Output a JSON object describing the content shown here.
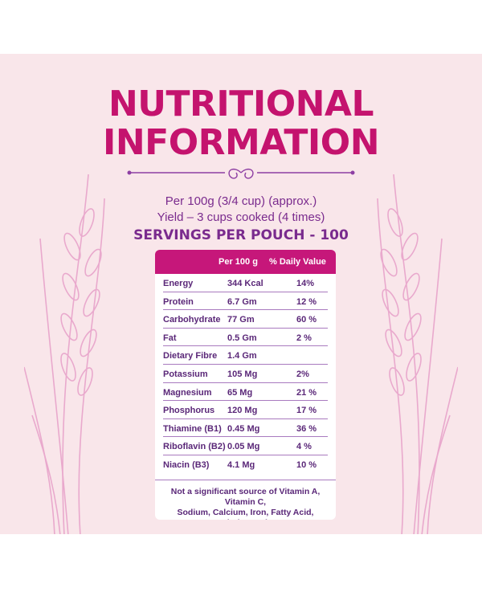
{
  "title": {
    "line1": "NUTRITIONAL",
    "line2": "INFORMATION"
  },
  "subtitle": {
    "per": "Per 100g (3/4 cup) (approx.)",
    "yield": "Yield – 3 cups cooked (4 times)",
    "servings": "SERVINGS PER POUCH - 100"
  },
  "table": {
    "headers": {
      "per100": "Per 100 g",
      "dv": "% Daily Value"
    },
    "rows": [
      {
        "nutrient": "Energy",
        "amount": "344 Kcal",
        "dv": "14%"
      },
      {
        "nutrient": "Protein",
        "amount": "6.7 Gm",
        "dv": "12 %"
      },
      {
        "nutrient": "Carbohydrate",
        "amount": "77 Gm",
        "dv": "60 %"
      },
      {
        "nutrient": "Fat",
        "amount": "0.5 Gm",
        "dv": "2 %"
      },
      {
        "nutrient": "Dietary Fibre",
        "amount": "1.4 Gm",
        "dv": ""
      },
      {
        "nutrient": "Potassium",
        "amount": "105 Mg",
        "dv": "2%"
      },
      {
        "nutrient": "Magnesium",
        "amount": "65 Mg",
        "dv": "21 %"
      },
      {
        "nutrient": "Phosphorus",
        "amount": "120 Mg",
        "dv": "17 %"
      },
      {
        "nutrient": "Thiamine (B1)",
        "amount": "0.45 Mg",
        "dv": "36 %"
      },
      {
        "nutrient": "Riboflavin (B2)",
        "amount": "0.05 Mg",
        "dv": "4 %"
      },
      {
        "nutrient": "Niacin (B3)",
        "amount": "4.1 Mg",
        "dv": "10 %"
      }
    ],
    "note_line1": "Not a significant source of Vitamin A, Vitamin C,",
    "note_line2": "Sodium, Calcium, Iron, Fatty Acid, Cholesterol."
  },
  "colors": {
    "background": "#f9e6ea",
    "title": "#c4136e",
    "text": "#7a2b8e",
    "header_bg": "#c6177a",
    "wheat": "#e9a9cd"
  },
  "icons": [
    "ornament-divider-icon",
    "wheat-stalk-left-icon",
    "wheat-stalk-right-icon"
  ]
}
